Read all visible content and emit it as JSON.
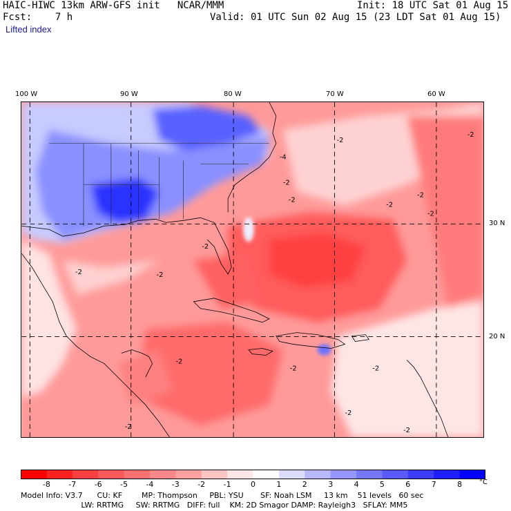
{
  "header": {
    "model_title": "HAIC-HIWC 13km ARW-GFS init   NCAR/MMM",
    "init": "Init: 18 UTC Sat 01 Aug 15",
    "fcst": "Fcst:    7 h",
    "valid": "Valid: 01 UTC Sun 02 Aug 15 (23 LDT Sat 01 Aug 15)",
    "field": "Lifted index"
  },
  "axes": {
    "lon_labels": [
      "100 W",
      "90 W",
      "80 W",
      "70 W",
      "60 W"
    ],
    "lat_labels": [
      "30 N",
      "20 N"
    ]
  },
  "contour_labels": [
    "-2",
    "-2",
    "-2",
    "-2",
    "-2",
    "-2",
    "-2",
    "-2",
    "-2",
    "-2",
    "-2",
    "-2",
    "-2",
    "-2",
    "-2",
    "-2",
    "-4"
  ],
  "colorbar": {
    "labels": [
      "-8",
      "-7",
      "-6",
      "-5",
      "-4",
      "-3",
      "-2",
      "-1",
      "0",
      "1",
      "2",
      "3",
      "4",
      "5",
      "6",
      "7",
      "8"
    ],
    "unit": "°C",
    "colors": [
      "#ff0000",
      "#ff2020",
      "#ff4040",
      "#ff5a5a",
      "#ff7070",
      "#ff8888",
      "#ffa0a0",
      "#ffc4c4",
      "#ffe6e6",
      "#ffffff",
      "#dcdcff",
      "#b8b8ff",
      "#9696ff",
      "#7878ff",
      "#5a5aff",
      "#3c3cff",
      "#1e1eff",
      "#0000ff"
    ]
  },
  "model_info": {
    "line1": "Model Info: V3.7      CU: KF        MP: Thompson     PBL: YSU       SF: Noah LSM     13 km    51 levels   60 sec",
    "line2": "                         LW: RRTMG     SW: RRTMG   DIFF: full    KM: 2D Smagor DAMP: Rayleigh3   SFLAY: MM5"
  }
}
